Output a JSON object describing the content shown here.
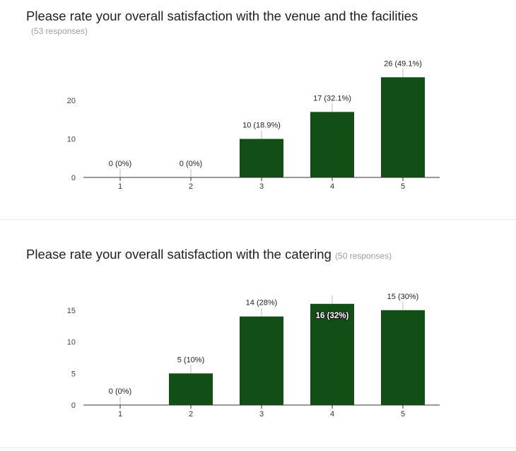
{
  "chart_data": [
    {
      "type": "bar",
      "title": "Please rate your overall satisfaction with the venue and the facilities",
      "subtitle": "(53 responses)",
      "categories": [
        "1",
        "2",
        "3",
        "4",
        "5"
      ],
      "values": [
        0,
        0,
        10,
        17,
        26
      ],
      "data_labels": [
        "0 (0%)",
        "0 (0%)",
        "10 (18.9%)",
        "17 (32.1%)",
        "26 (49.1%)"
      ],
      "yticks": [
        0,
        10,
        20
      ],
      "ylim": [
        0,
        26
      ],
      "grid": false,
      "bar_color": "#124f17"
    },
    {
      "type": "bar",
      "title": "Please rate your overall satisfaction with the catering",
      "subtitle": "(50 responses)",
      "categories": [
        "1",
        "2",
        "3",
        "4",
        "5"
      ],
      "values": [
        0,
        5,
        14,
        16,
        15
      ],
      "data_labels": [
        "0 (0%)",
        "5 (10%)",
        "14 (28%)",
        "16 (32%)",
        "15 (30%)"
      ],
      "yticks": [
        0,
        5,
        10,
        15
      ],
      "ylim": [
        0,
        16
      ],
      "grid": false,
      "bar_color": "#124f17"
    }
  ]
}
